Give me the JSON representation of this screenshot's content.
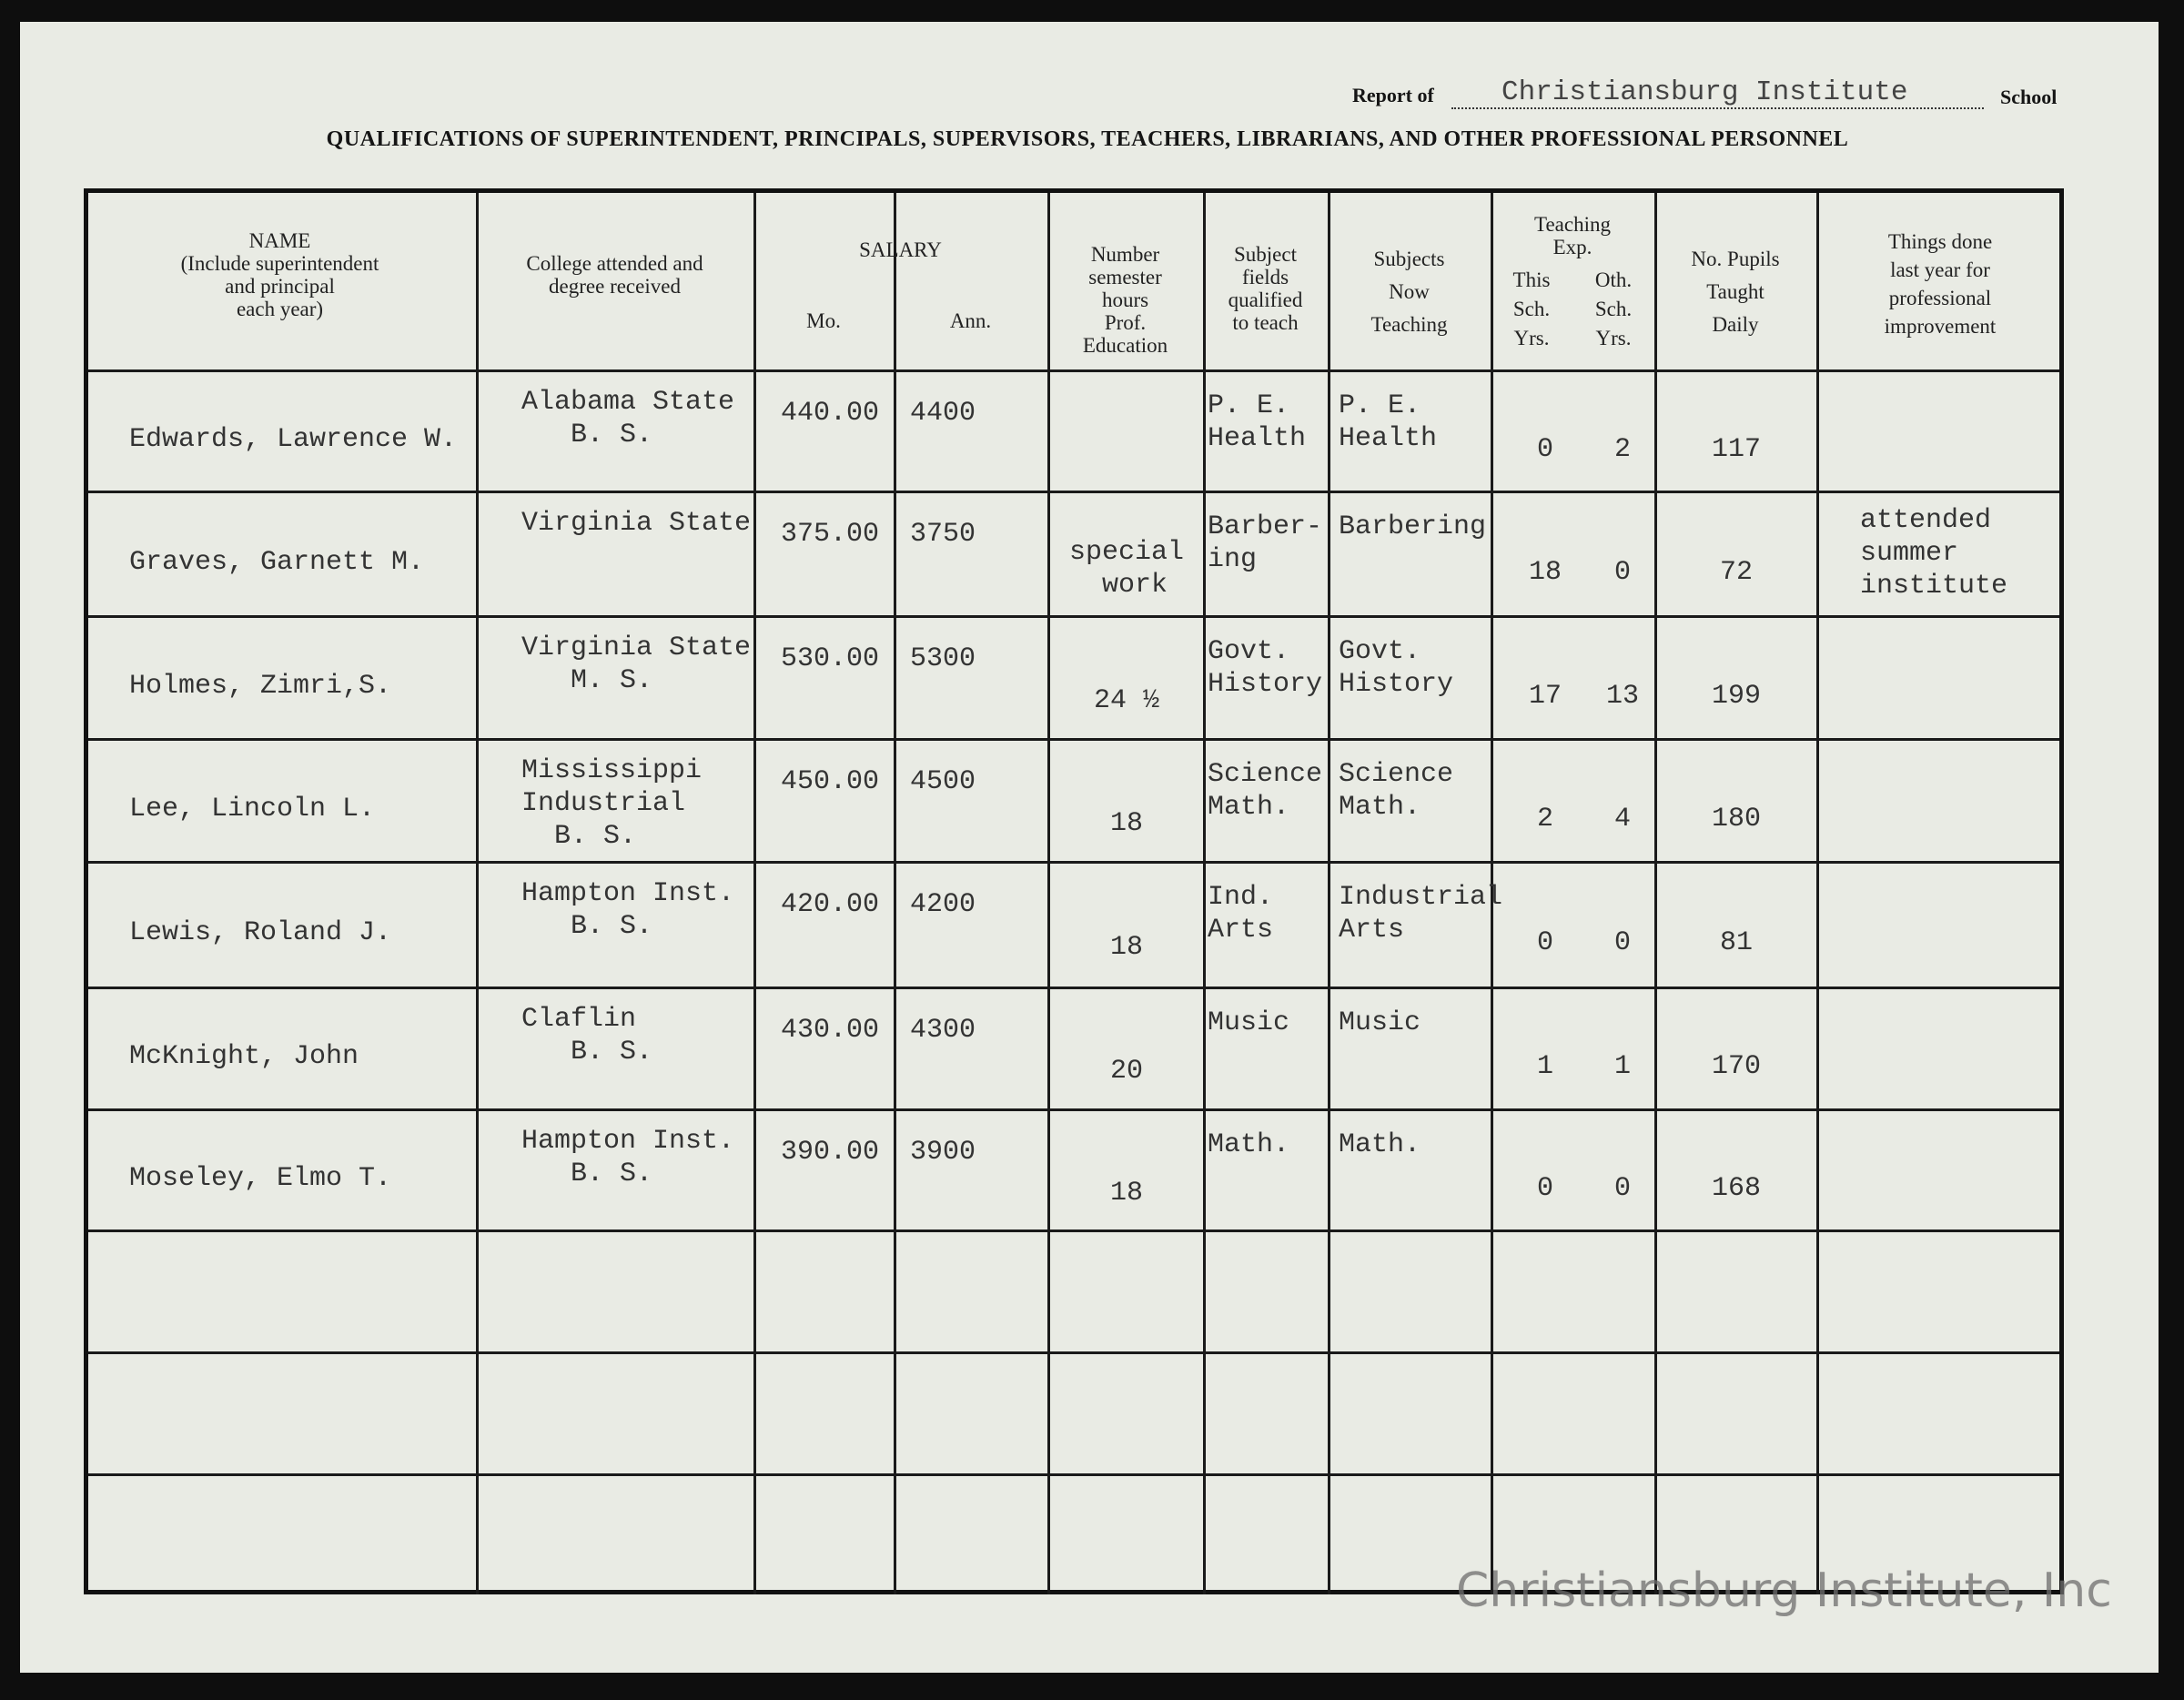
{
  "header": {
    "report_of_label": "Report of",
    "school_name": "Christiansburg Institute",
    "school_label": "School",
    "title": "QUALIFICATIONS OF SUPERINTENDENT, PRINCIPALS, SUPERVISORS, TEACHERS, LIBRARIANS, AND OTHER PROFESSIONAL PERSONNEL"
  },
  "columns": {
    "name": "NAME\n(Include superintendent\nand principal\neach year)",
    "college": "College attended and\ndegree received",
    "salary": "SALARY",
    "salary_mo": "Mo.",
    "salary_ann": "Ann.",
    "hours": "Number\nsemester\nhours\nProf.\nEducation",
    "fields": "Subject\nfields\nqualified\nto teach",
    "now_teaching": "Subjects\nNow\nTeaching",
    "teaching_exp": "Teaching\nExp.",
    "this_sch": "This\nSch.\nYrs.",
    "oth_sch": "Oth.\nSch.\nYrs.",
    "pupils": "No. Pupils\nTaught\nDaily",
    "improvement": "Things done\nlast year for\nprofessional\nimprovement"
  },
  "rows": [
    {
      "name": "Edwards, Lawrence W.",
      "college": "Alabama State\n   B. S.",
      "mo": "440.00",
      "ann": "4400",
      "hours": "",
      "fields": "P. E.\nHealth",
      "now": "P. E.\nHealth",
      "this": "0",
      "oth": "2",
      "pupils": "117",
      "improvement": ""
    },
    {
      "name": "Graves, Garnett M.",
      "college": "Virginia State",
      "mo": "375.00",
      "ann": "3750",
      "hours": "special\n work",
      "fields": "Barber-\ning",
      "now": "Barbering",
      "this": "18",
      "oth": "0",
      "pupils": "72",
      "improvement": "attended\nsummer\ninstitute"
    },
    {
      "name": "Holmes, Zimri,S.",
      "college": "Virginia State\n   M. S.",
      "mo": "530.00",
      "ann": "5300",
      "hours": "24 ½",
      "fields": "Govt.\nHistory",
      "now": "Govt.\nHistory",
      "this": "17",
      "oth": "13",
      "pupils": "199",
      "improvement": ""
    },
    {
      "name": "Lee, Lincoln L.",
      "college": "Mississippi\nIndustrial\n  B. S.",
      "mo": "450.00",
      "ann": "4500",
      "hours": "18",
      "fields": "Science\nMath.",
      "now": "Science\nMath.",
      "this": "2",
      "oth": "4",
      "pupils": "180",
      "improvement": ""
    },
    {
      "name": "Lewis, Roland J.",
      "college": "Hampton Inst.\n   B. S.",
      "mo": "420.00",
      "ann": "4200",
      "hours": "18",
      "fields": "Ind.\nArts",
      "now": "Industrial\nArts",
      "this": "0",
      "oth": "0",
      "pupils": "81",
      "improvement": ""
    },
    {
      "name": "McKnight, John",
      "college": "Claflin\n   B. S.",
      "mo": "430.00",
      "ann": "4300",
      "hours": "20",
      "fields": "Music",
      "now": "Music",
      "this": "1",
      "oth": "1",
      "pupils": "170",
      "improvement": ""
    },
    {
      "name": "Moseley, Elmo T.",
      "college": "Hampton Inst.\n   B. S.",
      "mo": "390.00",
      "ann": "3900",
      "hours": "18",
      "fields": "Math.",
      "now": "Math.",
      "this": "0",
      "oth": "0",
      "pupils": "168",
      "improvement": ""
    }
  ],
  "empty_rows": 3,
  "watermark": "Christiansburg Institute, Inc"
}
